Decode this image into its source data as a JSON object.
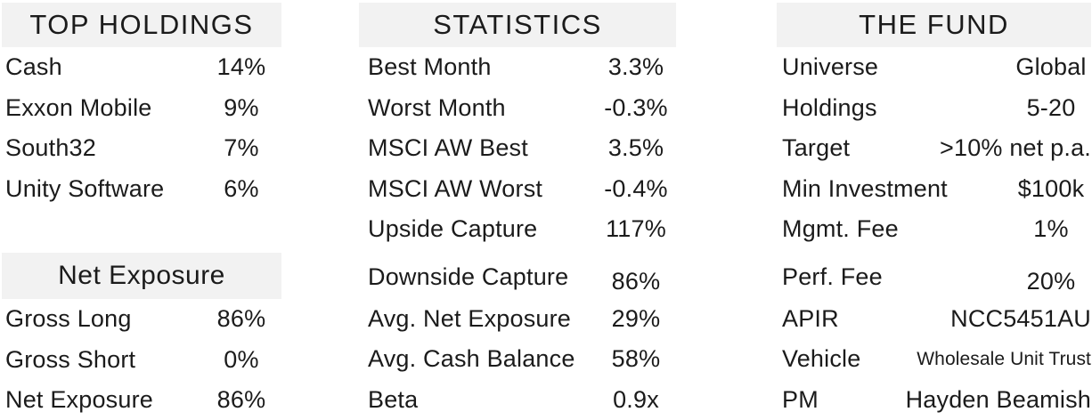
{
  "theme": {
    "background": "#ffffff",
    "text_color": "#1b1b1b",
    "header_band_color": "#f2f2f2"
  },
  "top_holdings": {
    "title": "TOP HOLDINGS",
    "rows": [
      {
        "label": "Cash",
        "value": "14%"
      },
      {
        "label": "Exxon Mobile",
        "value": "9%"
      },
      {
        "label": "South32",
        "value": "7%"
      },
      {
        "label": "Unity Software",
        "value": "6%"
      }
    ],
    "net_exposure": {
      "title": "Net Exposure",
      "rows": [
        {
          "label": "Gross Long",
          "value": "86%"
        },
        {
          "label": "Gross Short",
          "value": "0%"
        },
        {
          "label": "Net Exposure",
          "value": "86%"
        }
      ]
    }
  },
  "statistics": {
    "title": "STATISTICS",
    "rows": [
      {
        "label": "Best Month",
        "value": "3.3%"
      },
      {
        "label": "Worst Month",
        "value": "-0.3%"
      },
      {
        "label": "MSCI AW Best",
        "value": "3.5%"
      },
      {
        "label": "MSCI AW Worst",
        "value": "-0.4%"
      },
      {
        "label": "Upside Capture",
        "value": "117%"
      },
      {
        "label": "Downside Capture",
        "value": "86%"
      },
      {
        "label": "Avg. Net Exposure",
        "value": "29%"
      },
      {
        "label": "Avg. Cash Balance",
        "value": "58%"
      },
      {
        "label": "Beta",
        "value": "0.9x"
      }
    ]
  },
  "the_fund": {
    "title": "THE FUND",
    "rows": [
      {
        "label": "Universe",
        "value": "Global"
      },
      {
        "label": "Holdings",
        "value": "5-20"
      },
      {
        "label": "Target",
        "value": ">10% net p.a."
      },
      {
        "label": "Min Investment",
        "value": "$100k"
      },
      {
        "label": "Mgmt. Fee",
        "value": "1%"
      },
      {
        "label": "Perf. Fee",
        "value": "20%"
      },
      {
        "label": "APIR",
        "value": "NCC5451AU"
      },
      {
        "label": "Vehicle",
        "value": "Wholesale Unit Trust"
      },
      {
        "label": "PM",
        "value": "Hayden Beamish"
      }
    ]
  }
}
